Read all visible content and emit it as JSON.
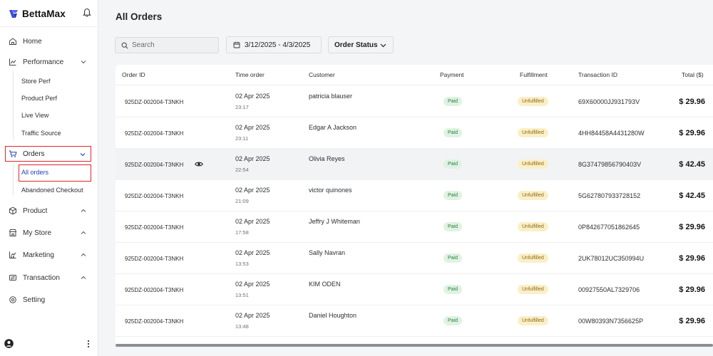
{
  "app": {
    "name": "BettaMax"
  },
  "sidebar": {
    "items": [
      {
        "label": "Home",
        "icon": "home-icon"
      },
      {
        "label": "Performance",
        "icon": "chart-icon",
        "expanded": true,
        "children": [
          "Store Perf",
          "Product Perf",
          "Live View",
          "Traffic Source"
        ]
      },
      {
        "label": "Orders",
        "icon": "cart-icon",
        "expanded": true,
        "children": [
          "All orders",
          "Abandoned Checkout"
        ]
      },
      {
        "label": "Product",
        "icon": "box-icon"
      },
      {
        "label": "My Store",
        "icon": "store-icon"
      },
      {
        "label": "Marketing",
        "icon": "megaphone-icon"
      },
      {
        "label": "Transaction",
        "icon": "transaction-icon"
      },
      {
        "label": "Setting",
        "icon": "gear-icon"
      }
    ]
  },
  "main": {
    "title": "All Orders",
    "search_placeholder": "Search",
    "date_range": "3/12/2025 - 4/3/2025",
    "status_filter": "Order Status",
    "columns": [
      "Order ID",
      "Time order",
      "Customer",
      "Payment",
      "Fulfillment",
      "Transaction ID",
      "Total ($)"
    ],
    "rows": [
      {
        "order_id": "925DZ-002004-T3NKH",
        "date": "02 Apr 2025",
        "time": "23:17",
        "customer": "patricia blauser",
        "payment": "Paid",
        "fulfillment": "Unfulfilled",
        "txn": "69X60000JJ931793V",
        "total": "$ 29.96"
      },
      {
        "order_id": "925DZ-002004-T3NKH",
        "date": "02 Apr 2025",
        "time": "23:11",
        "customer": "Edgar A Jackson",
        "payment": "Paid",
        "fulfillment": "Unfulfilled",
        "txn": "4HH84458A4431280W",
        "total": "$ 29.96"
      },
      {
        "order_id": "925DZ-002004-T3NKH",
        "date": "02 Apr 2025",
        "time": "22:54",
        "customer": "Olivia Reyes",
        "payment": "Paid",
        "fulfillment": "Unfulfilled",
        "txn": "8G37479856790403V",
        "total": "$ 42.45"
      },
      {
        "order_id": "925DZ-002004-T3NKH",
        "date": "02 Apr 2025",
        "time": "21:09",
        "customer": "victor quinones",
        "payment": "Paid",
        "fulfillment": "Unfulfilled",
        "txn": "5G627807933728152",
        "total": "$ 42.45"
      },
      {
        "order_id": "925DZ-002004-T3NKH",
        "date": "02 Apr 2025",
        "time": "17:58",
        "customer": "Jeffry J Whiteman",
        "payment": "Paid",
        "fulfillment": "Unfulfilled",
        "txn": "0P842677051862645",
        "total": "$ 29.96"
      },
      {
        "order_id": "925DZ-002004-T3NKH",
        "date": "02 Apr 2025",
        "time": "13:53",
        "customer": "Sally Navran",
        "payment": "Paid",
        "fulfillment": "Unfulfilled",
        "txn": "2UK78012UC350994U",
        "total": "$ 29.96"
      },
      {
        "order_id": "925DZ-002004-T3NKH",
        "date": "02 Apr 2025",
        "time": "13:51",
        "customer": "KIM ODEN",
        "payment": "Paid",
        "fulfillment": "Unfulfilled",
        "txn": "00927550AL7329706",
        "total": "$ 29.96"
      },
      {
        "order_id": "925DZ-002004-T3NKH",
        "date": "02 Apr 2025",
        "time": "13:48",
        "customer": "Daniel Houghton",
        "payment": "Paid",
        "fulfillment": "Unfulfilled",
        "txn": "00W80393N7356625P",
        "total": "$ 29.96"
      }
    ]
  },
  "colors": {
    "accent": "#1b3fb0",
    "highlight_box": "#e0252b",
    "paid_bg": "#dff3e3",
    "unfulfilled_bg": "#fbefc7"
  }
}
